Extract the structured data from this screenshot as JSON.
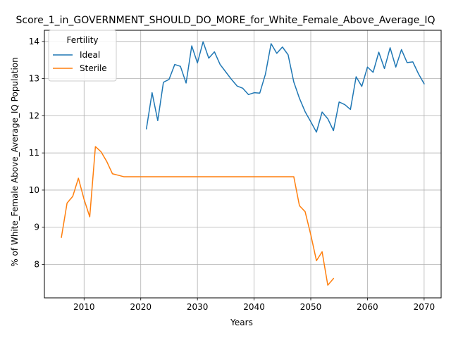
{
  "chart_data": {
    "type": "line",
    "title": "Score_1_in_GOVERNMENT_SHOULD_DO_MORE_for_White_Female_Above_Average_IQ",
    "xlabel": "Years",
    "ylabel": "% of White_Female Above_Average_IQ Population",
    "xlim": [
      2003,
      2073
    ],
    "ylim": [
      7.1,
      14.3
    ],
    "xticks": [
      2010,
      2020,
      2030,
      2040,
      2050,
      2060,
      2070
    ],
    "yticks": [
      8,
      9,
      10,
      11,
      12,
      13,
      14
    ],
    "grid": true,
    "legend": {
      "title": "Fertility",
      "placement": "top-left"
    },
    "series": [
      {
        "name": "Ideal",
        "color": "#1f77b4",
        "x": [
          2021,
          2022,
          2023,
          2024,
          2025,
          2026,
          2027,
          2028,
          2029,
          2030,
          2031,
          2032,
          2033,
          2034,
          2035,
          2036,
          2037,
          2038,
          2039,
          2040,
          2041,
          2042,
          2043,
          2044,
          2045,
          2046,
          2047,
          2048,
          2049,
          2050,
          2051,
          2052,
          2053,
          2054,
          2055,
          2056,
          2057,
          2058,
          2059,
          2060,
          2061,
          2062,
          2063,
          2064,
          2065,
          2066,
          2067,
          2068,
          2069,
          2070
        ],
        "y": [
          11.65,
          12.62,
          11.87,
          12.9,
          12.98,
          13.38,
          13.33,
          12.88,
          13.88,
          13.42,
          13.99,
          13.55,
          13.72,
          13.38,
          13.18,
          12.98,
          12.8,
          12.74,
          12.57,
          12.62,
          12.61,
          13.12,
          13.94,
          13.68,
          13.85,
          13.64,
          12.91,
          12.47,
          12.11,
          11.84,
          11.56,
          12.1,
          11.92,
          11.6,
          12.37,
          12.3,
          12.17,
          13.05,
          12.79,
          13.31,
          13.17,
          13.71,
          13.27,
          13.83,
          13.31,
          13.78,
          13.43,
          13.45,
          13.13,
          12.86
        ]
      },
      {
        "name": "Sterile",
        "color": "#ff7f0e",
        "x": [
          2006,
          2007,
          2008,
          2009,
          2010,
          2011,
          2012,
          2013,
          2014,
          2015,
          2016,
          2017,
          2018,
          2019,
          2020,
          2021,
          2022,
          2023,
          2024,
          2025,
          2026,
          2027,
          2028,
          2029,
          2030,
          2031,
          2032,
          2033,
          2034,
          2035,
          2036,
          2037,
          2038,
          2039,
          2040,
          2041,
          2042,
          2043,
          2044,
          2045,
          2046,
          2047,
          2048,
          2049,
          2050,
          2051,
          2052,
          2053,
          2054
        ],
        "y": [
          8.73,
          9.65,
          9.83,
          10.32,
          9.75,
          9.28,
          11.17,
          11.03,
          10.77,
          10.44,
          10.4,
          10.36,
          10.36,
          10.36,
          10.36,
          10.36,
          10.36,
          10.36,
          10.36,
          10.36,
          10.36,
          10.36,
          10.36,
          10.36,
          10.36,
          10.36,
          10.36,
          10.36,
          10.36,
          10.36,
          10.36,
          10.36,
          10.36,
          10.36,
          10.36,
          10.36,
          10.36,
          10.36,
          10.36,
          10.36,
          10.36,
          10.36,
          9.58,
          9.42,
          8.8,
          8.1,
          8.34,
          7.44,
          7.62
        ]
      }
    ]
  }
}
